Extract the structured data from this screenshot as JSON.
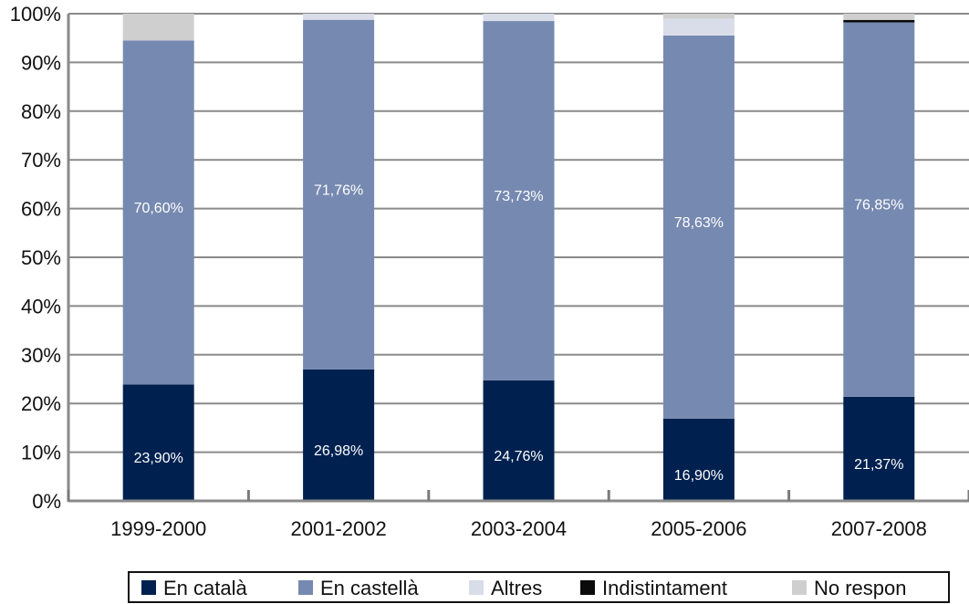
{
  "chart_data": {
    "type": "bar",
    "stacked": true,
    "categories": [
      "1999-2000",
      "2001-2002",
      "2003-2004",
      "2005-2006",
      "2007-2008"
    ],
    "series": [
      {
        "name": "En català",
        "color": "#002150",
        "values": [
          23.9,
          26.98,
          24.76,
          16.9,
          21.37
        ],
        "labels": [
          "23,90%",
          "26,98%",
          "24,76%",
          "16,90%",
          "21,37%"
        ]
      },
      {
        "name": "En castellà",
        "color": "#7689b0",
        "values": [
          70.6,
          71.76,
          73.73,
          78.63,
          76.85
        ],
        "labels": [
          "70,60%",
          "71,76%",
          "73,73%",
          "78,63%",
          "76,85%"
        ]
      },
      {
        "name": "Altres",
        "color": "#d8dde9",
        "values": [
          0,
          1.26,
          1.51,
          3.47,
          0
        ],
        "labels": [
          "",
          "",
          "",
          "",
          ""
        ]
      },
      {
        "name": "Indistintament",
        "color": "#0b0b0b",
        "values": [
          0,
          0,
          0,
          0,
          0.5
        ],
        "labels": [
          "",
          "",
          "",
          "",
          ""
        ]
      },
      {
        "name": "No respon",
        "color": "#cfcfcf",
        "values": [
          5.5,
          0,
          0,
          1.0,
          1.28
        ],
        "labels": [
          "",
          "",
          "",
          "",
          ""
        ]
      }
    ],
    "yticks": [
      "0%",
      "10%",
      "20%",
      "30%",
      "40%",
      "50%",
      "60%",
      "70%",
      "80%",
      "90%",
      "100%"
    ],
    "ylim": [
      0,
      100
    ],
    "grid": true,
    "legend_position": "bottom"
  }
}
